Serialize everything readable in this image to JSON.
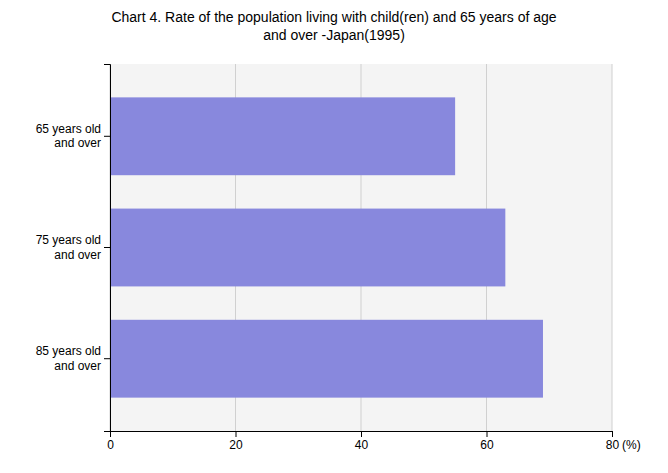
{
  "chart_data": {
    "type": "bar",
    "orientation": "horizontal",
    "title": "Chart 4. Rate of the population living with child(ren) and 65 years of age\nand over -Japan(1995)",
    "categories": [
      "65 years old\nand over",
      "75 years old\nand over",
      "85 years old\nand over"
    ],
    "values": [
      55.0,
      63.0,
      69.0
    ],
    "color": "#8888dd",
    "x_label": "(%)",
    "xlim": [
      0,
      80
    ],
    "xticks": [
      0,
      20,
      40,
      60,
      80
    ],
    "grid": true
  }
}
